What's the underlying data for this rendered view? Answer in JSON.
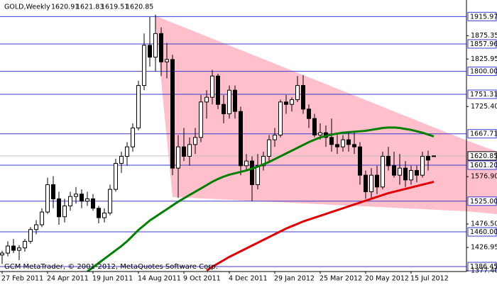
{
  "chart_data": {
    "type": "candlestick",
    "title": "GOLD,Weekly",
    "header_ohlc": [
      1620.91,
      1621.83,
      1619.51,
      1620.85
    ],
    "footer": "GCM MetaTrader, © 2001-2012, MetaQuotes Software Corp.",
    "categories": [
      "27 Feb 2011",
      null,
      null,
      null,
      null,
      null,
      null,
      null,
      "24 Apr 2011",
      null,
      null,
      null,
      null,
      null,
      null,
      null,
      "19 Jun 2011",
      null,
      null,
      null,
      null,
      null,
      null,
      null,
      "14 Aug 2011",
      null,
      null,
      null,
      null,
      null,
      null,
      null,
      "9 Oct 2011",
      null,
      null,
      null,
      null,
      null,
      null,
      null,
      "4 Dec 2011",
      null,
      null,
      null,
      null,
      null,
      null,
      null,
      "29 Jan 2012",
      null,
      null,
      null,
      null,
      null,
      null,
      null,
      "25 Mar 2012",
      null,
      null,
      null,
      null,
      null,
      null,
      null,
      "20 May 2012",
      null,
      null,
      null,
      null,
      null,
      null,
      null,
      "15 Jul 2012",
      null,
      null,
      null,
      null
    ],
    "open": [
      1411,
      1415,
      1430,
      1421,
      1426,
      1440,
      1465,
      1475,
      1502,
      1560,
      1530,
      1492,
      1515,
      1535,
      1540,
      1525,
      1530,
      1510,
      1490,
      1500,
      1550,
      1605,
      1620,
      1640,
      1680,
      1770,
      1855,
      1830,
      1880,
      1820,
      1825,
      1595,
      1640,
      1620,
      1645,
      1660,
      1735,
      1745,
      1790,
      1730,
      1710,
      1760,
      1715,
      1600,
      1610,
      1560,
      1600,
      1620,
      1655,
      1665,
      1735,
      1730,
      1740,
      1770,
      1720,
      1700,
      1665,
      1670,
      1660,
      1645,
      1640,
      1655,
      1645,
      1640,
      1580,
      1545,
      1580,
      1555,
      1620,
      1600,
      1580,
      1595,
      1570,
      1590,
      1580,
      1620,
      1620.91
    ],
    "high": [
      1420,
      1440,
      1445,
      1432,
      1445,
      1470,
      1485,
      1510,
      1575,
      1578,
      1545,
      1530,
      1545,
      1555,
      1550,
      1545,
      1540,
      1515,
      1510,
      1560,
      1615,
      1630,
      1650,
      1690,
      1780,
      1880,
      1915,
      1920,
      1893,
      1860,
      1835,
      1665,
      1680,
      1660,
      1680,
      1750,
      1760,
      1803,
      1795,
      1750,
      1770,
      1770,
      1725,
      1625,
      1620,
      1625,
      1630,
      1665,
      1680,
      1740,
      1750,
      1745,
      1790,
      1792,
      1730,
      1710,
      1690,
      1685,
      1700,
      1665,
      1665,
      1670,
      1670,
      1650,
      1590,
      1595,
      1600,
      1630,
      1640,
      1630,
      1625,
      1610,
      1600,
      1600,
      1630,
      1632,
      1621.83
    ],
    "low": [
      1392,
      1408,
      1415,
      1400,
      1418,
      1435,
      1455,
      1470,
      1498,
      1510,
      1475,
      1480,
      1505,
      1520,
      1510,
      1515,
      1505,
      1478,
      1480,
      1495,
      1545,
      1585,
      1600,
      1630,
      1675,
      1760,
      1810,
      1800,
      1790,
      1785,
      1580,
      1532,
      1610,
      1600,
      1625,
      1650,
      1700,
      1730,
      1720,
      1690,
      1700,
      1700,
      1580,
      1590,
      1525,
      1550,
      1590,
      1610,
      1640,
      1660,
      1710,
      1715,
      1735,
      1710,
      1680,
      1660,
      1655,
      1640,
      1630,
      1625,
      1630,
      1630,
      1625,
      1560,
      1530,
      1530,
      1540,
      1550,
      1590,
      1575,
      1560,
      1555,
      1560,
      1565,
      1575,
      1590,
      1619.51
    ],
    "close": [
      1415,
      1430,
      1421,
      1426,
      1440,
      1465,
      1475,
      1502,
      1560,
      1530,
      1492,
      1515,
      1535,
      1540,
      1525,
      1530,
      1510,
      1490,
      1500,
      1550,
      1605,
      1620,
      1640,
      1680,
      1770,
      1855,
      1830,
      1880,
      1820,
      1825,
      1595,
      1640,
      1620,
      1645,
      1660,
      1735,
      1745,
      1790,
      1730,
      1710,
      1760,
      1715,
      1600,
      1610,
      1560,
      1600,
      1620,
      1655,
      1665,
      1735,
      1730,
      1740,
      1770,
      1720,
      1700,
      1665,
      1670,
      1660,
      1645,
      1640,
      1655,
      1645,
      1640,
      1580,
      1545,
      1580,
      1555,
      1620,
      1600,
      1580,
      1595,
      1570,
      1590,
      1580,
      1620,
      1612,
      1620.85
    ],
    "lines": [
      {
        "color": "#008000",
        "values": [
          null,
          null,
          null,
          null,
          null,
          null,
          null,
          null,
          null,
          null,
          null,
          null,
          null,
          null,
          null,
          1376,
          1385,
          1394,
          1403,
          1412,
          1421,
          1430,
          1440,
          1452,
          1464,
          1474,
          1484,
          1492,
          1500,
          1508,
          1516,
          1524,
          1531,
          1538,
          1545,
          1552,
          1559,
          1566,
          1572,
          1577,
          1581,
          1584,
          1587,
          1590,
          1594,
          1598,
          1603,
          1608,
          1614,
          1620,
          1626,
          1632,
          1638,
          1644,
          1650,
          1655,
          1660,
          1663,
          1666,
          1668,
          1670,
          1671,
          1672,
          1673,
          1674,
          1676,
          1678,
          1680,
          1681,
          1681,
          1680,
          1678,
          1676,
          1673,
          1670,
          1666,
          1662
        ]
      },
      {
        "color": "#e00000",
        "values": [
          null,
          null,
          null,
          null,
          null,
          null,
          null,
          null,
          null,
          null,
          null,
          null,
          null,
          null,
          null,
          null,
          null,
          null,
          null,
          null,
          null,
          null,
          null,
          null,
          null,
          null,
          null,
          null,
          null,
          null,
          null,
          null,
          null,
          null,
          null,
          null,
          1378,
          1386,
          1393,
          1400,
          1407,
          1413,
          1419,
          1425,
          1431,
          1437,
          1443,
          1449,
          1455,
          1461,
          1467,
          1472,
          1477,
          1482,
          1486,
          1490,
          1494,
          1498,
          1502,
          1506,
          1510,
          1514,
          1518,
          1522,
          1526,
          1530,
          1534,
          1538,
          1542,
          1545,
          1548,
          1551,
          1554,
          1557,
          1560,
          1563,
          1566
        ]
      }
    ],
    "ylim": [
      1376,
      1951
    ],
    "yticks": [
      1875.35,
      1825.95,
      {
        "value": 1725.4,
        "label": "1725.40"
      },
      {
        "value": 1576.9,
        "label": "1576.90"
      },
      {
        "value": 1476.5,
        "label": "1476.50"
      },
      1426.95,
      {
        "value": 1377.4,
        "label": "1377.40"
      }
    ],
    "levels": [
      1915.97,
      1857.96,
      {
        "value": 1800,
        "label": "1800.00"
      },
      1751.31,
      1667.71,
      {
        "value": 1601.2,
        "label": "1601.20"
      },
      {
        "value": 1525,
        "label": "1525.00"
      },
      {
        "value": 1460,
        "label": "1460.00"
      },
      1386.45
    ],
    "level_color": "#3a3ad0",
    "current_price": 1620.85
  }
}
